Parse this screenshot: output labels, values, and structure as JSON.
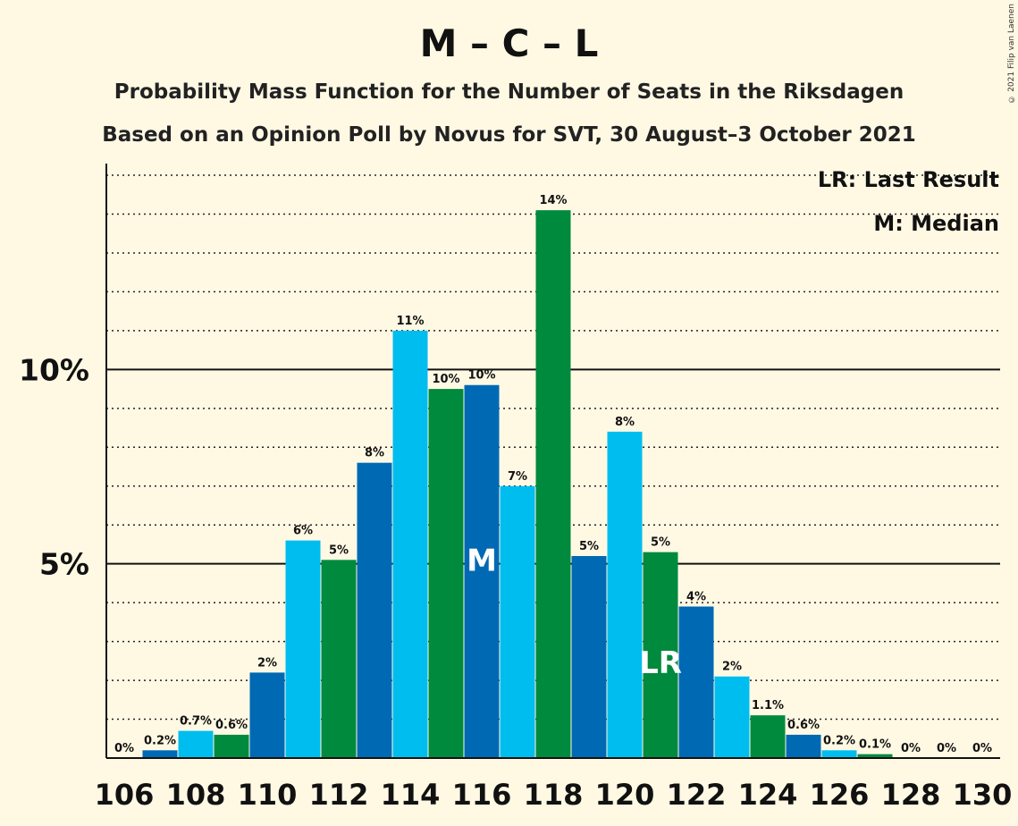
{
  "title": "M – C – L",
  "subtitle": "Probability Mass Function for the Number of Seats in the Riksdagen",
  "subtitle2": "Based on an Opinion Poll by Novus for SVT, 30 August–3 October 2021",
  "copyright": "© 2021 Filip van Laenen",
  "legend": {
    "last_result": "LR: Last Result",
    "median": "M: Median"
  },
  "colors": {
    "background": "#fff9e4",
    "palette": [
      "#0069b4",
      "#00bdef",
      "#008a3e"
    ]
  },
  "chart_data": {
    "type": "bar",
    "categories": [
      106,
      107,
      108,
      109,
      110,
      111,
      112,
      113,
      114,
      115,
      116,
      117,
      118,
      119,
      120,
      121,
      122,
      123,
      124,
      125,
      126,
      127,
      128,
      129,
      130
    ],
    "values": [
      0,
      0.2,
      0.7,
      0.6,
      2.2,
      5.6,
      5.1,
      7.6,
      11.0,
      9.5,
      9.6,
      7.0,
      14.1,
      5.2,
      8.4,
      5.3,
      3.9,
      2.1,
      1.1,
      0.6,
      0.2,
      0.1,
      0,
      0,
      0
    ],
    "value_labels": [
      "0%",
      "0.2%",
      "0.7%",
      "0.6%",
      "2%",
      "6%",
      "5%",
      "8%",
      "11%",
      "10%",
      "10%",
      "7%",
      "14%",
      "5%",
      "8%",
      "5%",
      "4%",
      "2%",
      "1.1%",
      "0.6%",
      "0.2%",
      "0.1%",
      "0%",
      "0%",
      "0%"
    ],
    "color_index": [
      0,
      0,
      1,
      2,
      0,
      1,
      2,
      0,
      1,
      2,
      0,
      1,
      2,
      0,
      1,
      2,
      0,
      1,
      2,
      0,
      1,
      2,
      0,
      1,
      2
    ],
    "x_tick_labels": [
      "106",
      "108",
      "110",
      "112",
      "114",
      "116",
      "118",
      "120",
      "122",
      "124",
      "126",
      "128",
      "130"
    ],
    "y_ticks": [
      {
        "value": 5,
        "label": "5%"
      },
      {
        "value": 10,
        "label": "10%"
      }
    ],
    "ylim": [
      0,
      15.3
    ],
    "grid": "dotted every 1%",
    "median": {
      "x": 116,
      "label": "M"
    },
    "last_result": {
      "x": 121,
      "label": "LR"
    },
    "legend_position": "top-right"
  }
}
